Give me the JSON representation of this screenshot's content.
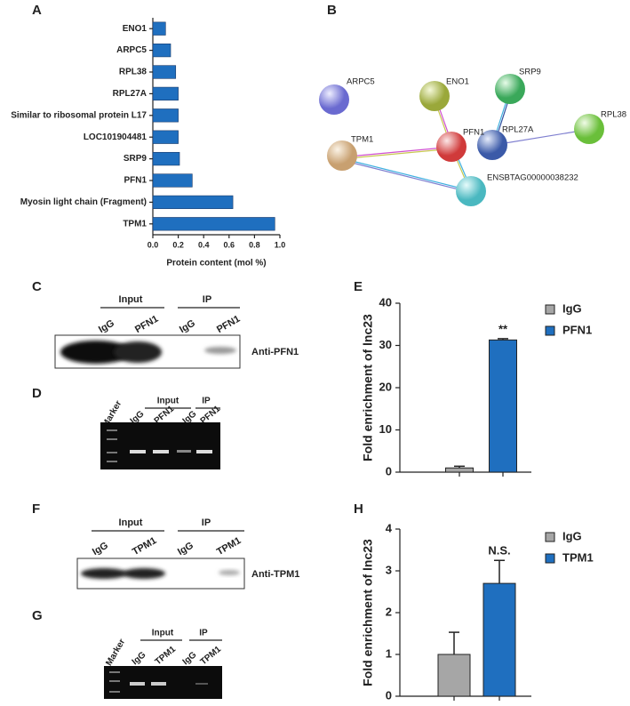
{
  "panel_labels": [
    "A",
    "B",
    "C",
    "D",
    "E",
    "F",
    "G",
    "H"
  ],
  "chart_data": [
    {
      "type": "barh",
      "categories": [
        "ENO1",
        "ARPC5",
        "RPL38",
        "RPL27A",
        "Similar to ribosomal protein L17",
        "LOC101904481",
        "SRP9",
        "PFN1",
        "Myosin light chain (Fragment)",
        "TPM1"
      ],
      "values": [
        0.1,
        0.14,
        0.18,
        0.2,
        0.2,
        0.2,
        0.21,
        0.31,
        0.63,
        0.96
      ],
      "color": "#1f6fbf",
      "xlabel": "Protein content (mol %)",
      "xlim": [
        0,
        1
      ],
      "xticks": [
        {
          "value": 0,
          "label": "0.0"
        },
        0.2,
        0.4,
        0.6,
        0.8,
        {
          "value": 1,
          "label": "1.0"
        }
      ]
    },
    {
      "type": "bar",
      "ylabel": "Fold enrichment of lnc23",
      "ylim": [
        0,
        40
      ],
      "yticks": [
        0,
        10,
        20,
        30,
        40
      ],
      "series": [
        {
          "name": "IgG",
          "color": "#a6a6a6",
          "values": [
            1.0
          ],
          "errors": [
            0.4
          ]
        },
        {
          "name": "PFN1",
          "color": "#1f6fbf",
          "values": [
            31.3
          ],
          "errors": [
            0.3
          ]
        }
      ],
      "annotation": "**",
      "legend": "upper right"
    },
    {
      "type": "bar",
      "ylabel": "Fold enrichment of lnc23",
      "ylim": [
        0,
        4
      ],
      "yticks": [
        0,
        1,
        2,
        3,
        4
      ],
      "series": [
        {
          "name": "IgG",
          "color": "#a6a6a6",
          "values": [
            1.0
          ],
          "errors": [
            0.53
          ]
        },
        {
          "name": "TPM1",
          "color": "#1f6fbf",
          "values": [
            2.7
          ],
          "errors": [
            0.55
          ]
        }
      ],
      "annotation": "N.S.",
      "legend": "upper right"
    }
  ],
  "network": {
    "nodes": [
      "ARPC5",
      "ENO1",
      "SRP9",
      "RPL27A",
      "RPL38",
      "TPM1",
      "PFN1",
      "ENSBTAG00000038232"
    ]
  },
  "blot_c": {
    "groups": [
      "Input",
      "IP"
    ],
    "lanes": [
      "IgG",
      "PFN1",
      "IgG",
      "PFN1"
    ],
    "antibody": "Anti-PFN1"
  },
  "gel_d": {
    "marker": "Marker",
    "groups": [
      "Input",
      "IP"
    ],
    "lanes": [
      "IgG",
      "PFN1",
      "IgG",
      "PFN1"
    ]
  },
  "blot_f": {
    "groups": [
      "Input",
      "IP"
    ],
    "lanes": [
      "IgG",
      "TPM1",
      "IgG",
      "TPM1"
    ],
    "antibody": "Anti-TPM1"
  },
  "gel_g": {
    "marker": "Marker",
    "groups": [
      "Input",
      "IP"
    ],
    "lanes": [
      "IgG",
      "TPM1",
      "IgG",
      "TPM1"
    ]
  }
}
